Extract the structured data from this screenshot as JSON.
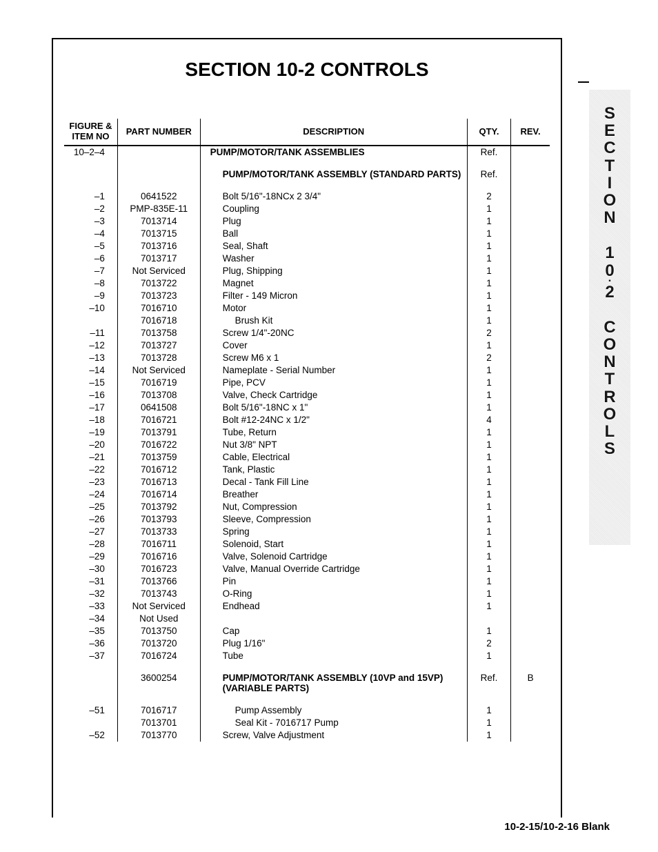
{
  "title": "SECTION 10-2 CONTROLS",
  "columns": [
    "FIGURE &\nITEM NO",
    "PART NUMBER",
    "DESCRIPTION",
    "QTY.",
    "REV."
  ],
  "figure_ref": "10–2–4",
  "header_rows": [
    {
      "desc": "PUMP/MOTOR/TANK ASSEMBLIES",
      "qty": "Ref.",
      "bold": true
    },
    {
      "spacer": true
    },
    {
      "desc": "PUMP/MOTOR/TANK ASSEMBLY (STANDARD PARTS)",
      "qty": "Ref.",
      "bold": true,
      "indent": 1
    },
    {
      "spacer": true
    }
  ],
  "rows": [
    {
      "item": "–1",
      "part": "0641522",
      "desc": "Bolt 5/16\"-18NCx 2 3/4\"",
      "qty": "2",
      "indent": 1
    },
    {
      "item": "–2",
      "part": "PMP-835E-11",
      "desc": "Coupling",
      "qty": "1",
      "indent": 1
    },
    {
      "item": "–3",
      "part": "7013714",
      "desc": "Plug",
      "qty": "1",
      "indent": 1
    },
    {
      "item": "–4",
      "part": "7013715",
      "desc": "Ball",
      "qty": "1",
      "indent": 1
    },
    {
      "item": "–5",
      "part": "7013716",
      "desc": "Seal, Shaft",
      "qty": "1",
      "indent": 1
    },
    {
      "item": "–6",
      "part": "7013717",
      "desc": "Washer",
      "qty": "1",
      "indent": 1
    },
    {
      "item": "–7",
      "part": "Not Serviced",
      "desc": "Plug, Shipping",
      "qty": "1",
      "indent": 1
    },
    {
      "item": "–8",
      "part": "7013722",
      "desc": "Magnet",
      "qty": "1",
      "indent": 1
    },
    {
      "item": "–9",
      "part": "7013723",
      "desc": "Filter - 149 Micron",
      "qty": "1",
      "indent": 1
    },
    {
      "item": "–10",
      "part": "7016710",
      "desc": "Motor",
      "qty": "1",
      "indent": 1
    },
    {
      "item": "",
      "part": "7016718",
      "desc": "Brush Kit",
      "qty": "1",
      "indent": 2
    },
    {
      "item": "–11",
      "part": "7013758",
      "desc": "Screw 1/4\"-20NC",
      "qty": "2",
      "indent": 1
    },
    {
      "item": "–12",
      "part": "7013727",
      "desc": "Cover",
      "qty": "1",
      "indent": 1
    },
    {
      "item": "–13",
      "part": "7013728",
      "desc": "Screw M6 x 1",
      "qty": "2",
      "indent": 1
    },
    {
      "item": "–14",
      "part": "Not Serviced",
      "desc": "Nameplate - Serial Number",
      "qty": "1",
      "indent": 1
    },
    {
      "item": "–15",
      "part": "7016719",
      "desc": "Pipe, PCV",
      "qty": "1",
      "indent": 1
    },
    {
      "item": "–16",
      "part": "7013708",
      "desc": "Valve, Check Cartridge",
      "qty": "1",
      "indent": 1
    },
    {
      "item": "–17",
      "part": "0641508",
      "desc": "Bolt 5/16\"-18NC x 1\"",
      "qty": "1",
      "indent": 1
    },
    {
      "item": "–18",
      "part": "7016721",
      "desc": "Bolt #12-24NC x 1/2\"",
      "qty": "4",
      "indent": 1
    },
    {
      "item": "–19",
      "part": "7013791",
      "desc": "Tube, Return",
      "qty": "1",
      "indent": 1
    },
    {
      "item": "–20",
      "part": "7016722",
      "desc": "Nut 3/8\" NPT",
      "qty": "1",
      "indent": 1
    },
    {
      "item": "–21",
      "part": "7013759",
      "desc": "Cable, Electrical",
      "qty": "1",
      "indent": 1
    },
    {
      "item": "–22",
      "part": "7016712",
      "desc": "Tank, Plastic",
      "qty": "1",
      "indent": 1
    },
    {
      "item": "–23",
      "part": "7016713",
      "desc": "Decal - Tank Fill Line",
      "qty": "1",
      "indent": 1
    },
    {
      "item": "–24",
      "part": "7016714",
      "desc": "Breather",
      "qty": "1",
      "indent": 1
    },
    {
      "item": "–25",
      "part": "7013792",
      "desc": "Nut, Compression",
      "qty": "1",
      "indent": 1
    },
    {
      "item": "–26",
      "part": "7013793",
      "desc": "Sleeve, Compression",
      "qty": "1",
      "indent": 1
    },
    {
      "item": "–27",
      "part": "7013733",
      "desc": "Spring",
      "qty": "1",
      "indent": 1
    },
    {
      "item": "–28",
      "part": "7016711",
      "desc": "Solenoid, Start",
      "qty": "1",
      "indent": 1
    },
    {
      "item": "–29",
      "part": "7016716",
      "desc": "Valve, Solenoid Cartridge",
      "qty": "1",
      "indent": 1
    },
    {
      "item": "–30",
      "part": "7016723",
      "desc": "Valve, Manual Override Cartridge",
      "qty": "1",
      "indent": 1
    },
    {
      "item": "–31",
      "part": "7013766",
      "desc": "Pin",
      "qty": "1",
      "indent": 1
    },
    {
      "item": "–32",
      "part": "7013743",
      "desc": "O-Ring",
      "qty": "1",
      "indent": 1
    },
    {
      "item": "–33",
      "part": "Not Serviced",
      "desc": "Endhead",
      "qty": "1",
      "indent": 1
    },
    {
      "item": "–34",
      "part": "Not Used",
      "desc": "",
      "qty": "",
      "indent": 1
    },
    {
      "item": "–35",
      "part": "7013750",
      "desc": "Cap",
      "qty": "1",
      "indent": 1
    },
    {
      "item": "–36",
      "part": "7013720",
      "desc": "Plug 1/16\"",
      "qty": "2",
      "indent": 1
    },
    {
      "item": "–37",
      "part": "7016724",
      "desc": "Tube",
      "qty": "1",
      "indent": 1
    },
    {
      "spacer": true
    },
    {
      "item": "",
      "part": "3600254",
      "desc": "PUMP/MOTOR/TANK ASSEMBLY (10VP and 15VP) (VARIABLE PARTS)",
      "qty": "Ref.",
      "rev": "B",
      "bold_desc": true,
      "indent": 1
    },
    {
      "spacer": true
    },
    {
      "item": "–51",
      "part": "7016717",
      "desc": "Pump Assembly",
      "qty": "1",
      "indent": 2
    },
    {
      "item": "",
      "part": "7013701",
      "desc": "Seal Kit - 7016717 Pump",
      "qty": "1",
      "indent": 2,
      "extra_indent": true
    },
    {
      "item": "–52",
      "part": "7013770",
      "desc": "Screw, Valve Adjustment",
      "qty": "1",
      "indent": 1
    }
  ],
  "side_tab": [
    "S",
    "E",
    "C",
    "T",
    "I",
    "O",
    "N",
    "",
    "1",
    "0",
    "-",
    "2",
    "",
    "C",
    "O",
    "N",
    "T",
    "R",
    "O",
    "L",
    "S"
  ],
  "footer": "10-2-15/10-2-16 Blank"
}
